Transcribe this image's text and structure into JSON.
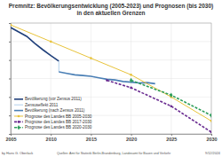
{
  "chart_data": {
    "type": "line",
    "title": "Premnitz: Bevölkerungsentwicklung (2005-2023) und Prognosen (bis 2030) in den aktuellen Grenzen",
    "author": "by Hans G. Oberlack",
    "source": "Quellen: Amt für Statistik Berlin-Brandenburg, Landesamt für Bauen und Verkehr",
    "date": "9/12/2024",
    "xlim": [
      2005,
      2030
    ],
    "xticks": [
      2005,
      2010,
      2015,
      2020,
      2025,
      2030
    ],
    "ylim": [
      7000,
      10000
    ],
    "yticks": [
      7000,
      7500,
      8000,
      8500,
      9000,
      9500,
      10000
    ],
    "grid": true,
    "tick_labels": "x",
    "legend": "lower left",
    "series": [
      {
        "name": "Bevölkerung (vor Zensus 2011)",
        "color": "#1f3f7a",
        "line_style": "solid",
        "x": [
          2005,
          2006,
          2007,
          2008,
          2009,
          2010,
          2011
        ],
        "values": [
          9880,
          9760,
          9640,
          9450,
          9280,
          9120,
          8970
        ]
      },
      {
        "name": "Zensuseffekt 2011",
        "color": "#9dc3e6",
        "line_style": "solid",
        "x": [
          2011,
          2011
        ],
        "values": [
          8970,
          8680
        ]
      },
      {
        "name": "Bevölkerung (nach Zensus 2011)",
        "color": "#4a7fb5",
        "line_style": "solid",
        "x": [
          2011,
          2012,
          2013,
          2014,
          2015,
          2016,
          2017,
          2018,
          2019,
          2020,
          2021,
          2022,
          2023
        ],
        "values": [
          8680,
          8640,
          8600,
          8580,
          8560,
          8520,
          8480,
          8460,
          8420,
          8400,
          8380,
          8390,
          8360
        ]
      },
      {
        "name": "Prognose des Landes BB 2005-2030",
        "color": "#e8c33a",
        "line_style": "solid",
        "marker": "circle",
        "x": [
          2005,
          2010,
          2015,
          2020,
          2025,
          2030
        ],
        "values": [
          9950,
          9500,
          9050,
          8600,
          8000,
          7350
        ]
      },
      {
        "name": "Prognose des Landes BB 2017-2030",
        "color": "#6a2c91",
        "line_style": "dashed",
        "marker": "circle",
        "x": [
          2017,
          2020,
          2025,
          2030
        ],
        "values": [
          8450,
          8250,
          7750,
          7050
        ]
      },
      {
        "name": "Prognose des Landes BB 2020-2030",
        "color": "#2e9e5b",
        "line_style": "dashed",
        "marker": "diamond",
        "x": [
          2020,
          2025,
          2030
        ],
        "values": [
          8450,
          8050,
          7500
        ]
      }
    ]
  }
}
